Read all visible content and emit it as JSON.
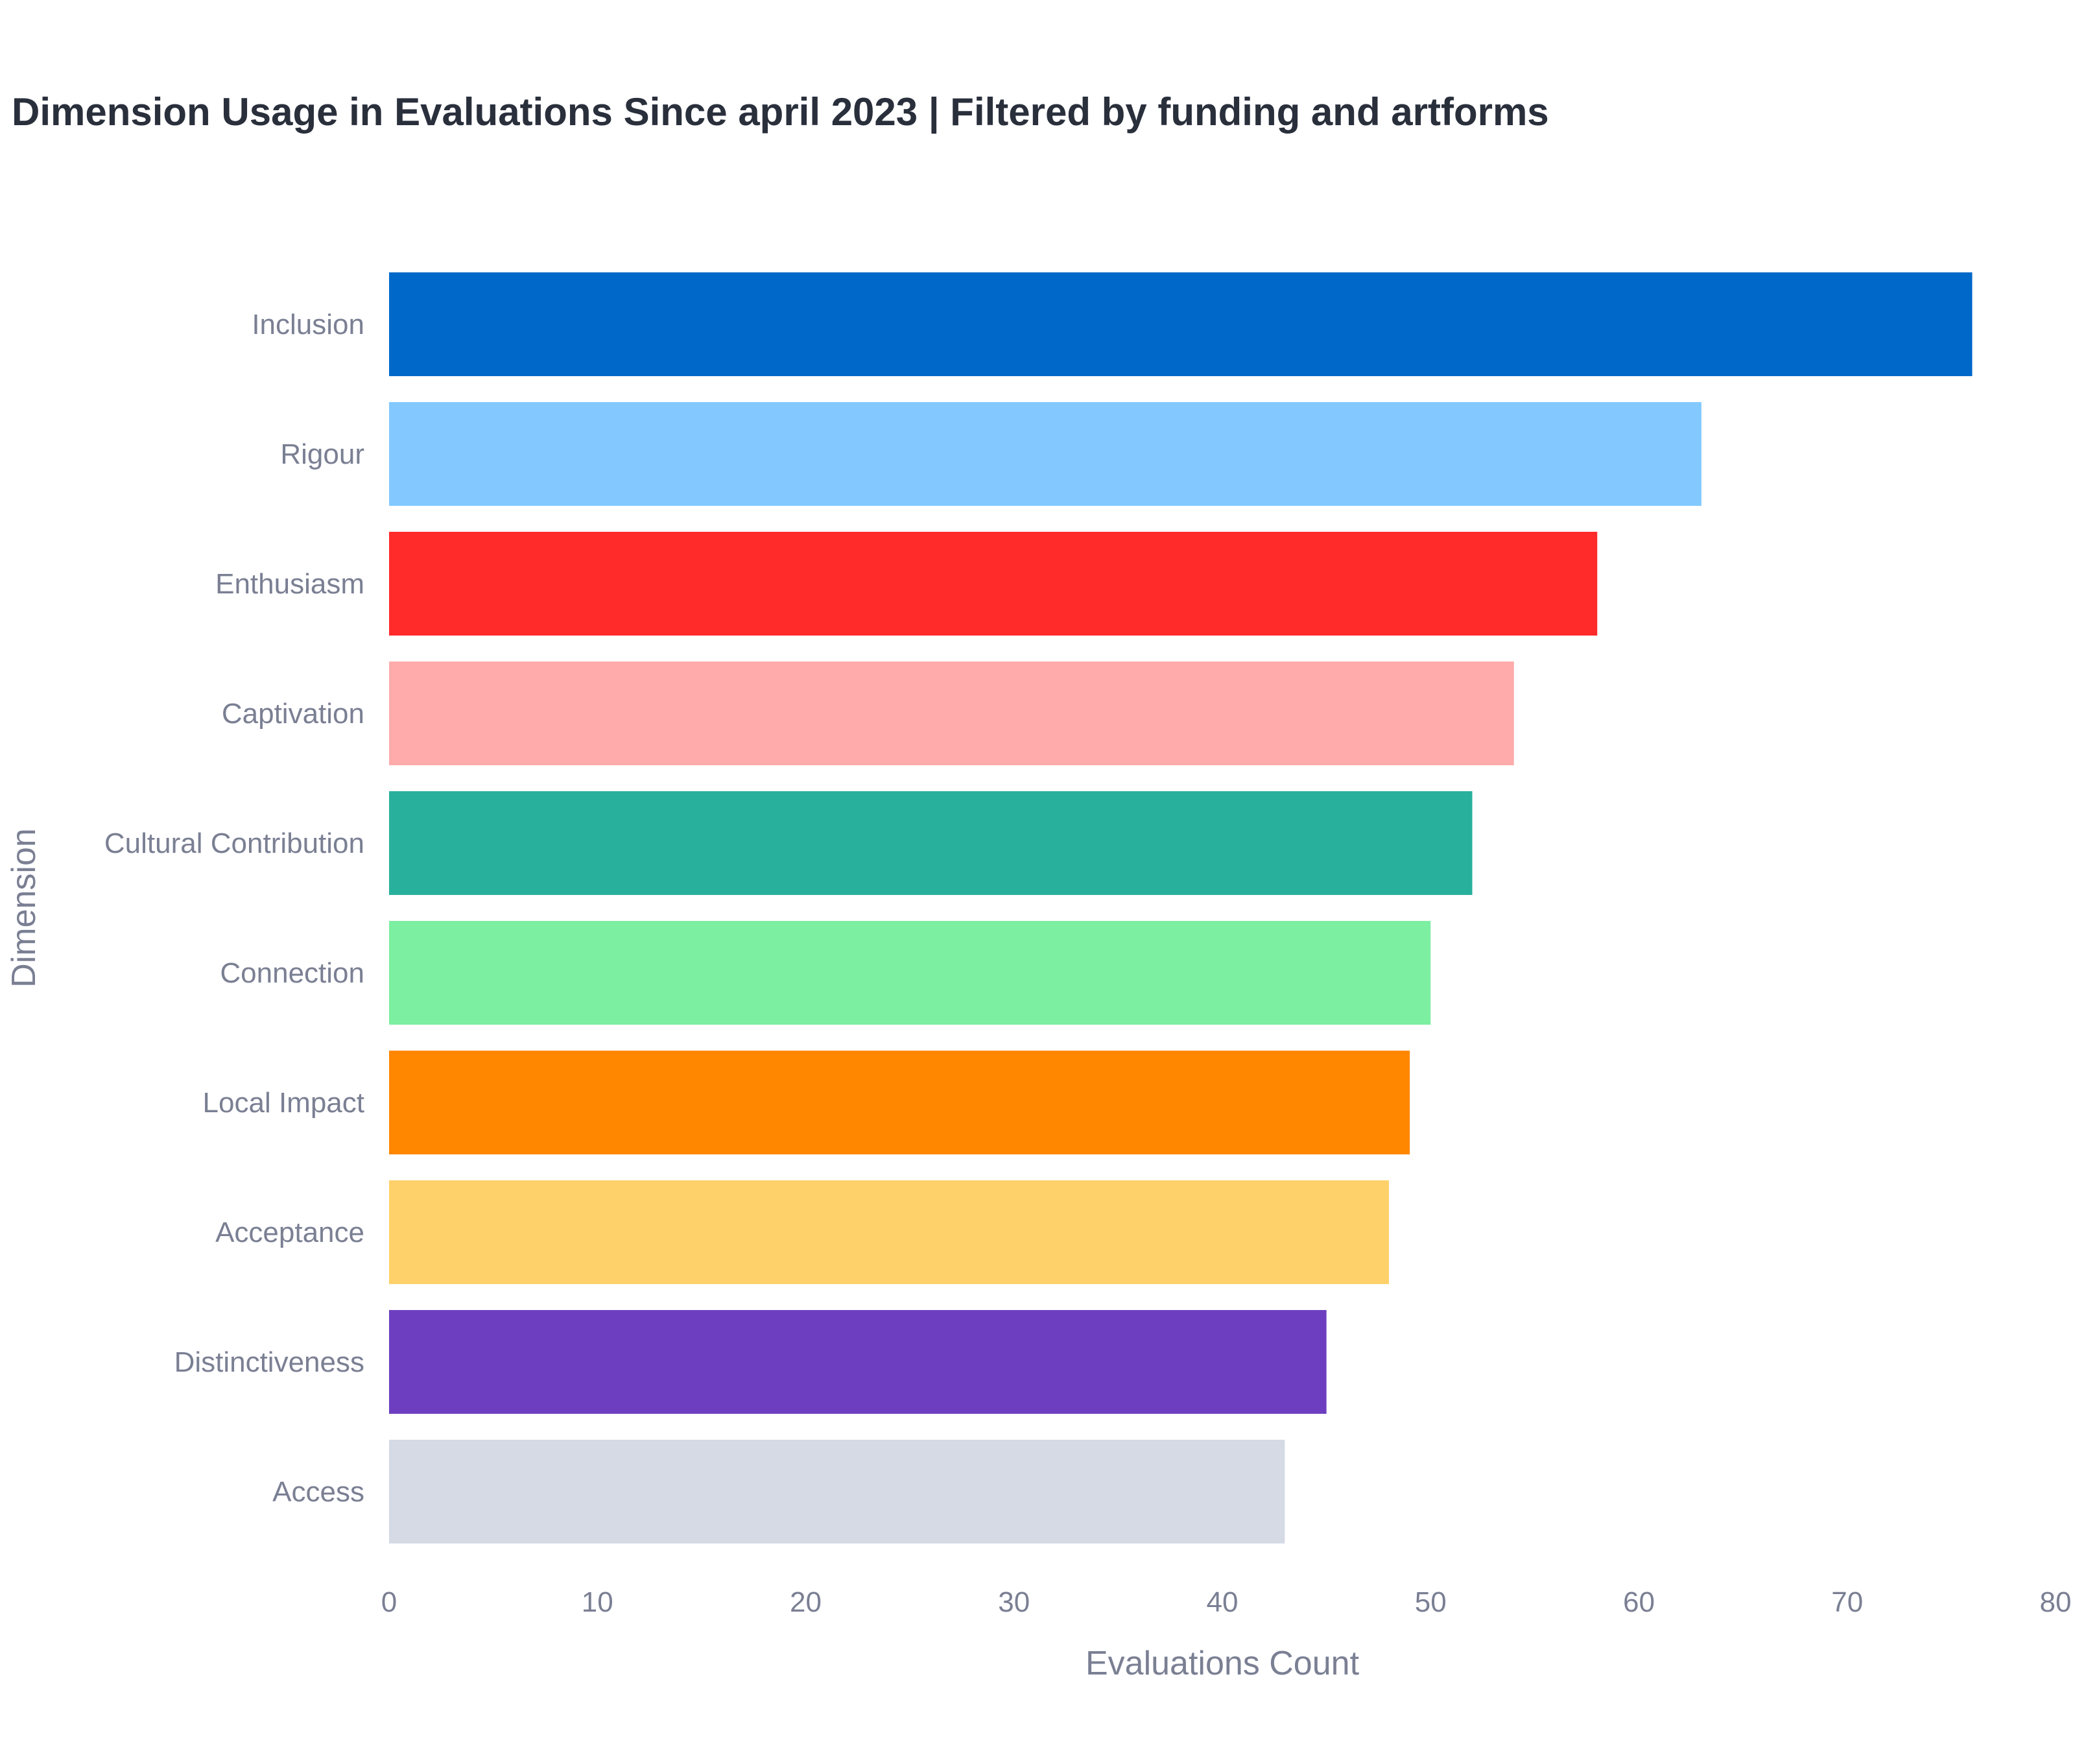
{
  "chart_data": {
    "type": "bar",
    "orientation": "horizontal",
    "title": "Dimension Usage in Evaluations Since april 2023 | Filtered by funding and artforms",
    "xlabel": "Evaluations Count",
    "ylabel": "Dimension",
    "xlim": [
      0,
      80
    ],
    "xticks": [
      "0",
      "10",
      "20",
      "30",
      "40",
      "50",
      "60",
      "70",
      "80"
    ],
    "grid": false,
    "legend": "none",
    "categories": [
      "Inclusion",
      "Rigour",
      "Enthusiasm",
      "Captivation",
      "Cultural Contribution",
      "Connection",
      "Local Impact",
      "Acceptance",
      "Distinctiveness",
      "Access"
    ],
    "values": [
      76,
      63,
      58,
      54,
      52,
      50,
      49,
      48,
      45,
      43
    ],
    "colors": [
      "#0068c9",
      "#83c9ff",
      "#ff2b2b",
      "#ffabab",
      "#29b09d",
      "#7defa1",
      "#ff8700",
      "#ffd16a",
      "#6d3fc0",
      "#d5dae5"
    ]
  }
}
